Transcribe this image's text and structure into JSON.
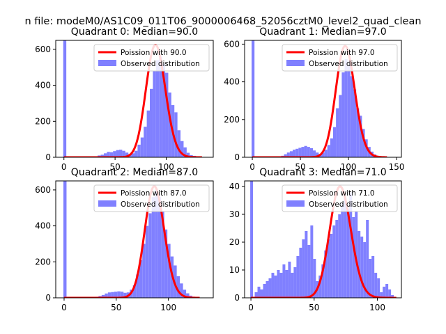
{
  "figure": {
    "suptitle": "n file: modeM0/AS1C09_011T06_9000006468_52056cztM0_level2_quad_clean",
    "colors": {
      "observed": "#8080ff",
      "poisson": "#ff0000"
    },
    "legend_placement": "upper-right"
  },
  "chart_data": [
    {
      "type": "bar",
      "title": "Quadrant 0: Median=90.0",
      "xlim": [
        -8,
        146
      ],
      "ylim": [
        0,
        650
      ],
      "xticks": [
        0,
        50,
        100
      ],
      "yticks": [
        0,
        200,
        400,
        600
      ],
      "bin_width": 3,
      "spike": {
        "x": 0,
        "value": 650
      },
      "legend": [
        "Poission with 90.0",
        "Observed distribution"
      ],
      "observed": {
        "name": "Observed distribution",
        "x": [
          30,
          33,
          36,
          39,
          42,
          45,
          48,
          51,
          54,
          57,
          60,
          63,
          66,
          69,
          72,
          75,
          78,
          81,
          84,
          87,
          90,
          93,
          96,
          99,
          102,
          105,
          108,
          111,
          114,
          117,
          120,
          123,
          126,
          129,
          132
        ],
        "values": [
          5,
          10,
          14,
          22,
          30,
          28,
          34,
          40,
          42,
          36,
          26,
          18,
          22,
          36,
          70,
          110,
          170,
          260,
          380,
          480,
          540,
          560,
          520,
          470,
          360,
          290,
          250,
          150,
          90,
          55,
          25,
          12,
          8,
          4,
          2
        ]
      },
      "poisson": {
        "name": "Poission with 90.0",
        "lambda": 90.0,
        "peak": 625,
        "x_start": 0,
        "x_end": 135
      }
    },
    {
      "type": "bar",
      "title": "Quadrant 1: Median=97.0",
      "xlim": [
        -8,
        155
      ],
      "ylim": [
        0,
        620
      ],
      "xticks": [
        0,
        50,
        100,
        150
      ],
      "yticks": [
        0,
        200,
        400,
        600
      ],
      "bin_width": 3,
      "spike": {
        "x": 0,
        "value": 620
      },
      "legend": [
        "Poission with 97.0",
        "Observed distribution"
      ],
      "observed": {
        "name": "Observed distribution",
        "x": [
          30,
          33,
          36,
          39,
          42,
          45,
          48,
          51,
          54,
          57,
          60,
          63,
          66,
          69,
          72,
          75,
          78,
          81,
          84,
          87,
          90,
          93,
          96,
          99,
          102,
          105,
          108,
          111,
          114,
          117,
          120,
          123,
          126,
          129,
          132,
          135,
          138,
          141
        ],
        "values": [
          8,
          16,
          25,
          32,
          40,
          45,
          50,
          55,
          60,
          55,
          48,
          36,
          25,
          18,
          25,
          40,
          65,
          100,
          160,
          260,
          330,
          450,
          520,
          510,
          430,
          360,
          260,
          220,
          150,
          95,
          55,
          30,
          15,
          8,
          5,
          3,
          2,
          1
        ]
      },
      "poisson": {
        "name": "Poission with 97.0",
        "lambda": 97.0,
        "peak": 590,
        "x_start": 0,
        "x_end": 140
      }
    },
    {
      "type": "bar",
      "title": "Quadrant 2: Median=87.0",
      "xlim": [
        -8,
        143
      ],
      "ylim": [
        0,
        650
      ],
      "xticks": [
        0,
        50,
        100
      ],
      "yticks": [
        0,
        200,
        400,
        600
      ],
      "bin_width": 3,
      "spike": {
        "x": 0,
        "value": 650
      },
      "legend": [
        "Poission with 87.0",
        "Observed distribution"
      ],
      "observed": {
        "name": "Observed distribution",
        "x": [
          27,
          30,
          33,
          36,
          39,
          42,
          45,
          48,
          51,
          54,
          57,
          60,
          63,
          66,
          69,
          72,
          75,
          78,
          81,
          84,
          87,
          90,
          93,
          96,
          99,
          102,
          105,
          108,
          111,
          114,
          117,
          120,
          123,
          126,
          129
        ],
        "values": [
          3,
          6,
          10,
          16,
          24,
          30,
          32,
          34,
          36,
          34,
          28,
          30,
          45,
          70,
          130,
          210,
          300,
          400,
          470,
          560,
          600,
          560,
          480,
          380,
          300,
          230,
          180,
          120,
          80,
          45,
          25,
          12,
          6,
          3,
          1
        ]
      },
      "poisson": {
        "name": "Poission with 87.0",
        "lambda": 87.0,
        "peak": 620,
        "x_start": 0,
        "x_end": 130
      }
    },
    {
      "type": "bar",
      "title": "Quadrant 3: Median=71.0",
      "xlim": [
        -5,
        119
      ],
      "ylim": [
        0,
        42
      ],
      "xticks": [
        0,
        50,
        100
      ],
      "yticks": [
        0,
        10,
        20,
        30,
        40
      ],
      "bin_width": 2.2,
      "spike": {
        "x": 0,
        "value": 42
      },
      "legend": [
        "Poission with 71.0",
        "Observed distribution"
      ],
      "observed": {
        "name": "Observed distribution",
        "x": [
          3,
          5.2,
          7.4,
          9.6,
          11.8,
          14,
          16.2,
          18.4,
          20.6,
          22.8,
          25,
          27.2,
          29.4,
          31.6,
          33.8,
          36,
          38.2,
          40.4,
          42.6,
          44.8,
          47,
          49.2,
          51.4,
          53.6,
          55.8,
          58,
          60.2,
          62.4,
          64.6,
          66.8,
          69,
          71.2,
          73.4,
          75.6,
          77.8,
          80,
          82.2,
          84.4,
          86.6,
          88.8,
          91,
          93.2,
          95.4,
          97.6,
          99.8,
          102,
          104.2,
          106.4,
          108.6,
          110.8
        ],
        "values": [
          2,
          4,
          3,
          5,
          6,
          7,
          9,
          8,
          10,
          9,
          12,
          10,
          13,
          9,
          11,
          15,
          18,
          21,
          24,
          19,
          26,
          14,
          6,
          8,
          12,
          17,
          21,
          23,
          26,
          28,
          30,
          34,
          36,
          32,
          38,
          29,
          31,
          24,
          22,
          20,
          28,
          14,
          15,
          9,
          7,
          2,
          4,
          5,
          3,
          1
        ]
      },
      "poisson": {
        "name": "Poission with 71.0",
        "lambda": 71.0,
        "peak": 40,
        "x_start": 0,
        "x_end": 115
      }
    }
  ]
}
